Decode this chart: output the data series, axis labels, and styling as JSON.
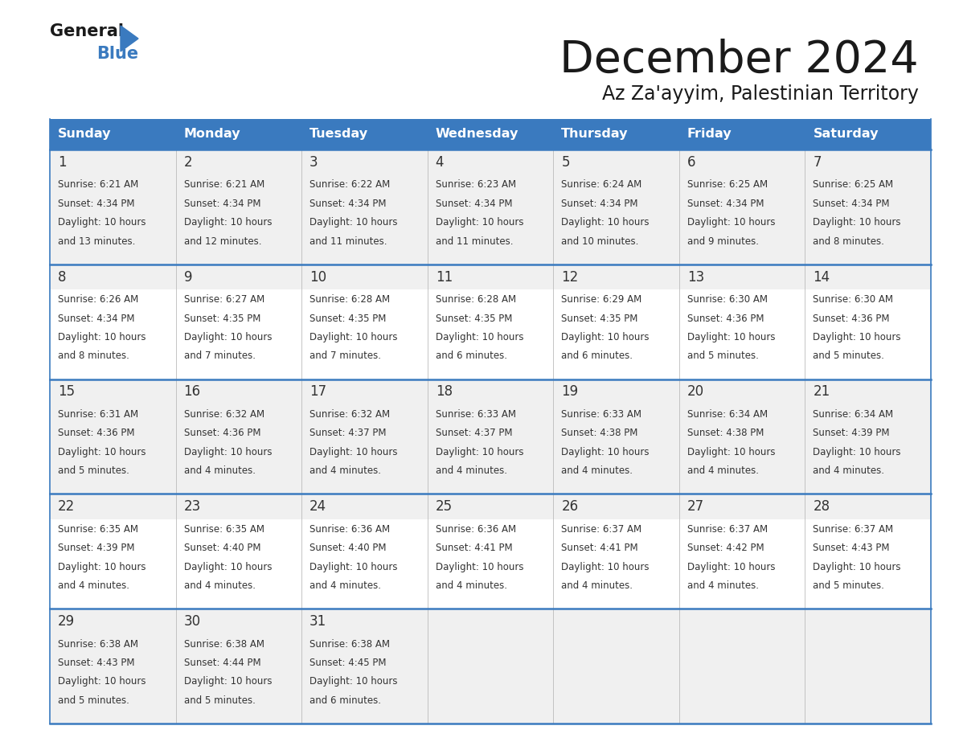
{
  "title": "December 2024",
  "subtitle": "Az Za'ayyim, Palestinian Territory",
  "header_bg_color": "#3a7abf",
  "header_text_color": "#ffffff",
  "days_of_week": [
    "Sunday",
    "Monday",
    "Tuesday",
    "Wednesday",
    "Thursday",
    "Friday",
    "Saturday"
  ],
  "cell_bg_light": "#f0f0f0",
  "cell_bg_white": "#ffffff",
  "cell_text_color": "#333333",
  "grid_line_color": "#3a7abf",
  "calendar_data": [
    [
      {
        "day": 1,
        "sunrise": "6:21 AM",
        "sunset": "4:34 PM",
        "daylight": "10 hours and 13 minutes."
      },
      {
        "day": 2,
        "sunrise": "6:21 AM",
        "sunset": "4:34 PM",
        "daylight": "10 hours and 12 minutes."
      },
      {
        "day": 3,
        "sunrise": "6:22 AM",
        "sunset": "4:34 PM",
        "daylight": "10 hours and 11 minutes."
      },
      {
        "day": 4,
        "sunrise": "6:23 AM",
        "sunset": "4:34 PM",
        "daylight": "10 hours and 11 minutes."
      },
      {
        "day": 5,
        "sunrise": "6:24 AM",
        "sunset": "4:34 PM",
        "daylight": "10 hours and 10 minutes."
      },
      {
        "day": 6,
        "sunrise": "6:25 AM",
        "sunset": "4:34 PM",
        "daylight": "10 hours and 9 minutes."
      },
      {
        "day": 7,
        "sunrise": "6:25 AM",
        "sunset": "4:34 PM",
        "daylight": "10 hours and 8 minutes."
      }
    ],
    [
      {
        "day": 8,
        "sunrise": "6:26 AM",
        "sunset": "4:34 PM",
        "daylight": "10 hours and 8 minutes."
      },
      {
        "day": 9,
        "sunrise": "6:27 AM",
        "sunset": "4:35 PM",
        "daylight": "10 hours and 7 minutes."
      },
      {
        "day": 10,
        "sunrise": "6:28 AM",
        "sunset": "4:35 PM",
        "daylight": "10 hours and 7 minutes."
      },
      {
        "day": 11,
        "sunrise": "6:28 AM",
        "sunset": "4:35 PM",
        "daylight": "10 hours and 6 minutes."
      },
      {
        "day": 12,
        "sunrise": "6:29 AM",
        "sunset": "4:35 PM",
        "daylight": "10 hours and 6 minutes."
      },
      {
        "day": 13,
        "sunrise": "6:30 AM",
        "sunset": "4:36 PM",
        "daylight": "10 hours and 5 minutes."
      },
      {
        "day": 14,
        "sunrise": "6:30 AM",
        "sunset": "4:36 PM",
        "daylight": "10 hours and 5 minutes."
      }
    ],
    [
      {
        "day": 15,
        "sunrise": "6:31 AM",
        "sunset": "4:36 PM",
        "daylight": "10 hours and 5 minutes."
      },
      {
        "day": 16,
        "sunrise": "6:32 AM",
        "sunset": "4:36 PM",
        "daylight": "10 hours and 4 minutes."
      },
      {
        "day": 17,
        "sunrise": "6:32 AM",
        "sunset": "4:37 PM",
        "daylight": "10 hours and 4 minutes."
      },
      {
        "day": 18,
        "sunrise": "6:33 AM",
        "sunset": "4:37 PM",
        "daylight": "10 hours and 4 minutes."
      },
      {
        "day": 19,
        "sunrise": "6:33 AM",
        "sunset": "4:38 PM",
        "daylight": "10 hours and 4 minutes."
      },
      {
        "day": 20,
        "sunrise": "6:34 AM",
        "sunset": "4:38 PM",
        "daylight": "10 hours and 4 minutes."
      },
      {
        "day": 21,
        "sunrise": "6:34 AM",
        "sunset": "4:39 PM",
        "daylight": "10 hours and 4 minutes."
      }
    ],
    [
      {
        "day": 22,
        "sunrise": "6:35 AM",
        "sunset": "4:39 PM",
        "daylight": "10 hours and 4 minutes."
      },
      {
        "day": 23,
        "sunrise": "6:35 AM",
        "sunset": "4:40 PM",
        "daylight": "10 hours and 4 minutes."
      },
      {
        "day": 24,
        "sunrise": "6:36 AM",
        "sunset": "4:40 PM",
        "daylight": "10 hours and 4 minutes."
      },
      {
        "day": 25,
        "sunrise": "6:36 AM",
        "sunset": "4:41 PM",
        "daylight": "10 hours and 4 minutes."
      },
      {
        "day": 26,
        "sunrise": "6:37 AM",
        "sunset": "4:41 PM",
        "daylight": "10 hours and 4 minutes."
      },
      {
        "day": 27,
        "sunrise": "6:37 AM",
        "sunset": "4:42 PM",
        "daylight": "10 hours and 4 minutes."
      },
      {
        "day": 28,
        "sunrise": "6:37 AM",
        "sunset": "4:43 PM",
        "daylight": "10 hours and 5 minutes."
      }
    ],
    [
      {
        "day": 29,
        "sunrise": "6:38 AM",
        "sunset": "4:43 PM",
        "daylight": "10 hours and 5 minutes."
      },
      {
        "day": 30,
        "sunrise": "6:38 AM",
        "sunset": "4:44 PM",
        "daylight": "10 hours and 5 minutes."
      },
      {
        "day": 31,
        "sunrise": "6:38 AM",
        "sunset": "4:45 PM",
        "daylight": "10 hours and 6 minutes."
      },
      null,
      null,
      null,
      null
    ]
  ]
}
